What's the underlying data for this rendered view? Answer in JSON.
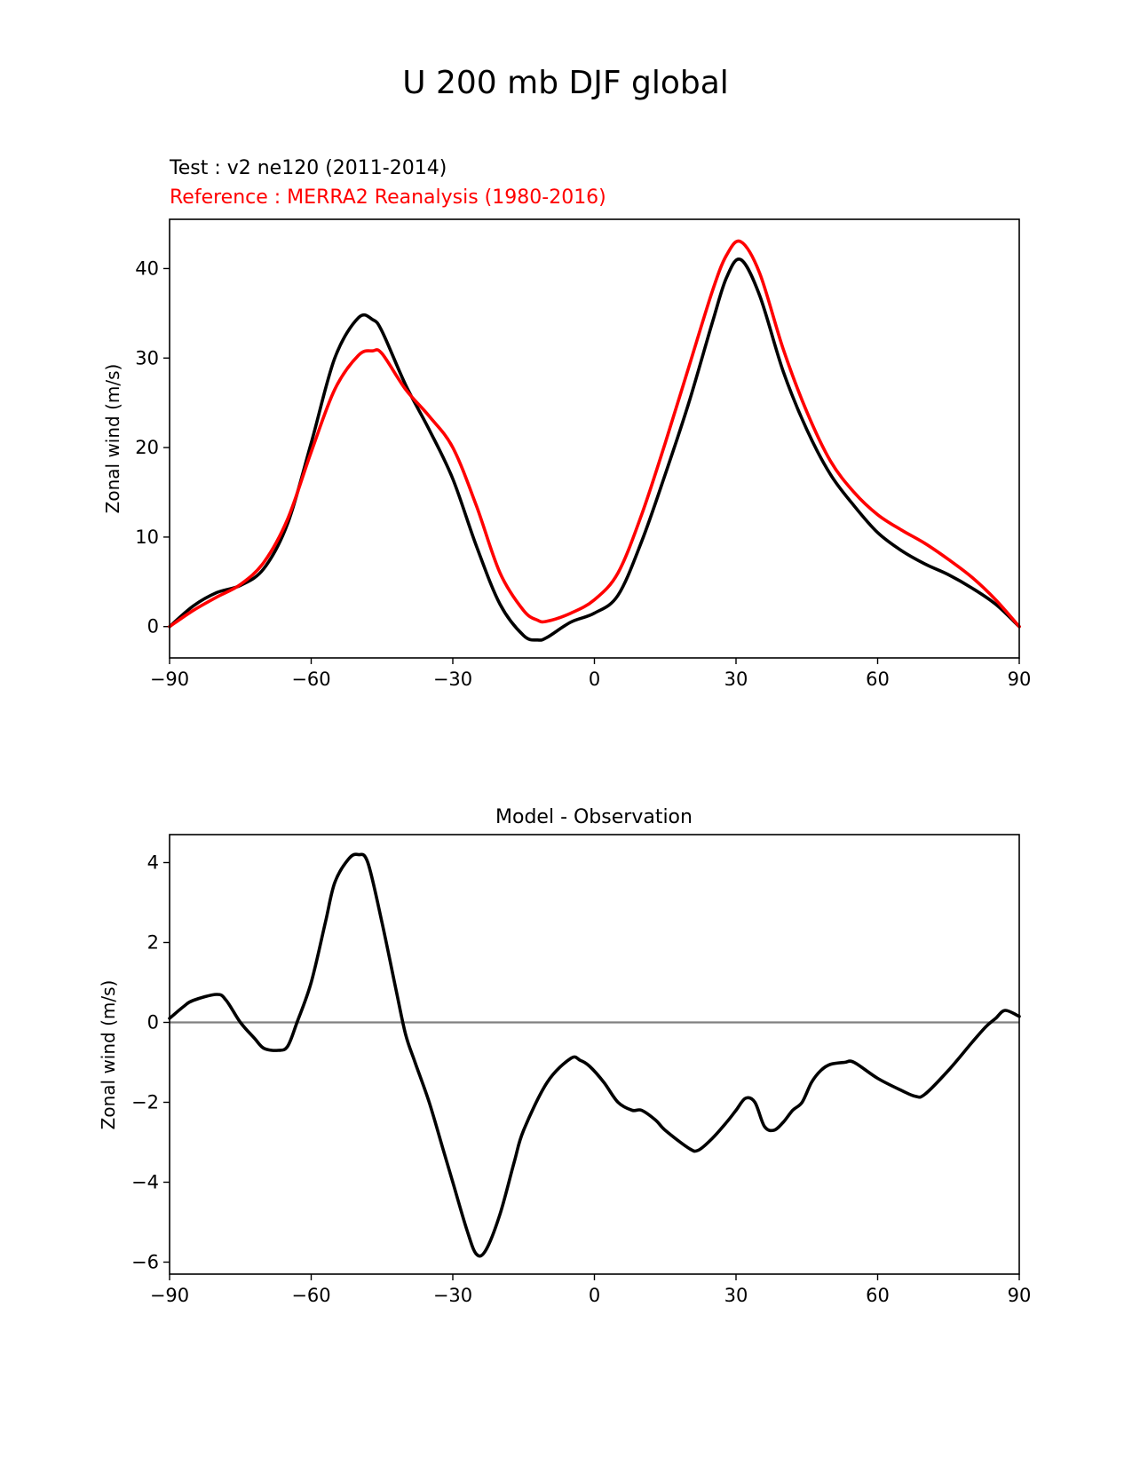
{
  "figure_title": "U 200 mb DJF global",
  "chart_data": [
    {
      "type": "line",
      "subtitle_test": "Test : v2 ne120 (2011-2014)",
      "subtitle_reference": "Reference : MERRA2 Reanalysis (1980-2016)",
      "xlabel": "",
      "ylabel": "Zonal wind (m/s)",
      "xlim": [
        -90,
        90
      ],
      "ylim": [
        -3.5,
        45.5
      ],
      "xticks": [
        -90,
        -60,
        -30,
        0,
        30,
        60,
        90
      ],
      "xtick_labels": [
        "−90",
        "−60",
        "−30",
        "0",
        "30",
        "60",
        "90"
      ],
      "yticks": [
        0,
        10,
        20,
        30,
        40
      ],
      "ytick_labels": [
        "0",
        "10",
        "20",
        "30",
        "40"
      ],
      "x": [
        -90,
        -85,
        -80,
        -75,
        -70,
        -65,
        -60,
        -55,
        -50,
        -47,
        -45,
        -40,
        -35,
        -30,
        -25,
        -20,
        -15,
        -12,
        -10,
        -5,
        0,
        5,
        10,
        15,
        20,
        25,
        28,
        31,
        35,
        40,
        45,
        50,
        55,
        60,
        65,
        70,
        75,
        80,
        85,
        90
      ],
      "series": [
        {
          "name": "Test",
          "color": "#000000",
          "values": [
            0,
            2.3,
            3.8,
            4.6,
            6.5,
            11.5,
            20.5,
            30.0,
            34.5,
            34.3,
            33.0,
            27.0,
            22.0,
            16.5,
            9.0,
            2.5,
            -1.0,
            -1.5,
            -1.2,
            0.5,
            1.5,
            3.5,
            9.5,
            17.0,
            25.0,
            34.0,
            39.0,
            41.0,
            37.0,
            28.5,
            22.0,
            17.0,
            13.5,
            10.5,
            8.5,
            7.0,
            5.8,
            4.3,
            2.5,
            0
          ]
        },
        {
          "name": "Reference",
          "color": "#ff0000",
          "values": [
            0,
            1.8,
            3.3,
            4.7,
            7.2,
            12.0,
            19.5,
            26.5,
            30.3,
            30.8,
            30.5,
            26.5,
            23.5,
            20.0,
            13.5,
            6.0,
            1.8,
            0.7,
            0.6,
            1.5,
            3.0,
            6.0,
            12.5,
            20.5,
            29.0,
            37.5,
            41.5,
            43.0,
            39.5,
            31.0,
            24.0,
            18.5,
            15.0,
            12.5,
            10.8,
            9.3,
            7.5,
            5.5,
            3.0,
            0
          ]
        }
      ]
    },
    {
      "type": "line",
      "title": "Model - Observation",
      "xlabel": "",
      "ylabel": "Zonal wind (m/s)",
      "xlim": [
        -90,
        90
      ],
      "ylim": [
        -6.3,
        4.7
      ],
      "xticks": [
        -90,
        -60,
        -30,
        0,
        30,
        60,
        90
      ],
      "xtick_labels": [
        "−90",
        "−60",
        "−30",
        "0",
        "30",
        "60",
        "90"
      ],
      "yticks": [
        -6,
        -4,
        -2,
        0,
        2,
        4
      ],
      "ytick_labels": [
        "−6",
        "−4",
        "−2",
        "0",
        "2",
        "4"
      ],
      "zero_line_color": "#808080",
      "x": [
        -90,
        -87,
        -85,
        -80,
        -78,
        -75,
        -72,
        -70,
        -67,
        -65,
        -63,
        -60,
        -57,
        -55,
        -52,
        -50,
        -48,
        -45,
        -42,
        -40,
        -38,
        -35,
        -32,
        -30,
        -27,
        -25,
        -23,
        -20,
        -17,
        -15,
        -10,
        -5,
        -3,
        -1,
        2,
        5,
        8,
        10,
        13,
        15,
        20,
        22,
        25,
        28,
        30,
        32,
        34,
        36,
        38,
        40,
        42,
        44,
        46,
        48,
        50,
        53,
        55,
        60,
        65,
        68,
        70,
        75,
        80,
        83,
        85,
        87,
        90
      ],
      "series": [
        {
          "name": "Model - Observation",
          "color": "#000000",
          "values": [
            0.1,
            0.4,
            0.55,
            0.7,
            0.55,
            0.0,
            -0.4,
            -0.65,
            -0.7,
            -0.6,
            0.0,
            1.0,
            2.5,
            3.5,
            4.1,
            4.2,
            4.0,
            2.5,
            0.8,
            -0.3,
            -1.0,
            -2.0,
            -3.2,
            -4.0,
            -5.2,
            -5.8,
            -5.7,
            -4.8,
            -3.5,
            -2.7,
            -1.5,
            -0.9,
            -0.95,
            -1.1,
            -1.5,
            -2.0,
            -2.2,
            -2.2,
            -2.45,
            -2.7,
            -3.15,
            -3.2,
            -2.9,
            -2.5,
            -2.2,
            -1.9,
            -2.0,
            -2.6,
            -2.7,
            -2.5,
            -2.2,
            -2.0,
            -1.5,
            -1.2,
            -1.05,
            -1.0,
            -1.0,
            -1.4,
            -1.7,
            -1.85,
            -1.8,
            -1.2,
            -0.5,
            -0.1,
            0.1,
            0.3,
            0.15
          ]
        }
      ]
    }
  ]
}
